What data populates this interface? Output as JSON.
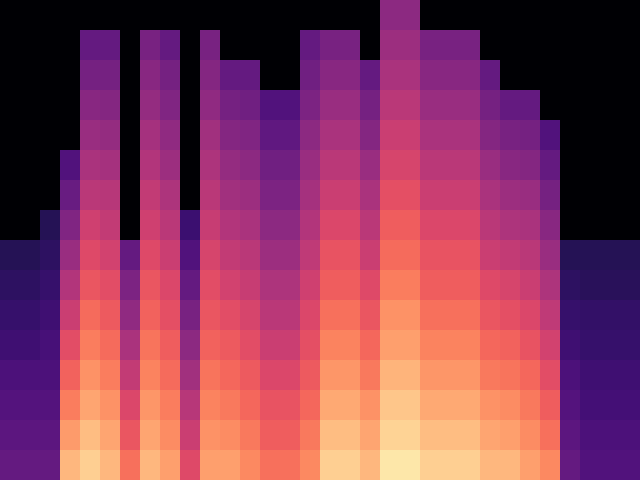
{
  "chart_data": {
    "type": "heatmap",
    "color": "magma",
    "tick_labels": false,
    "values": [
      [
        0,
        0,
        0,
        0,
        0,
        0,
        0,
        0,
        0,
        0,
        0,
        0,
        0,
        0,
        0,
        0,
        0,
        0,
        0,
        0.4,
        0.4,
        0,
        0,
        0,
        0,
        0,
        0,
        0,
        0,
        0,
        0,
        0
      ],
      [
        0,
        0,
        0,
        0,
        0.3,
        0.3,
        0,
        0.35,
        0.3,
        0,
        0.35,
        0,
        0,
        0,
        0,
        0.3,
        0.35,
        0.35,
        0,
        0.44,
        0.44,
        0.35,
        0.35,
        0.35,
        0,
        0,
        0,
        0,
        0,
        0,
        0,
        0
      ],
      [
        0,
        0,
        0,
        0,
        0.34,
        0.34,
        0,
        0.39,
        0.34,
        0,
        0.38,
        0.3,
        0.3,
        0,
        0,
        0.33,
        0.39,
        0.39,
        0.3,
        0.47,
        0.47,
        0.39,
        0.39,
        0.39,
        0.3,
        0,
        0,
        0,
        0,
        0,
        0,
        0
      ],
      [
        0,
        0,
        0,
        0,
        0.39,
        0.38,
        0,
        0.42,
        0.37,
        0,
        0.41,
        0.34,
        0.33,
        0.25,
        0.25,
        0.36,
        0.43,
        0.43,
        0.34,
        0.51,
        0.51,
        0.43,
        0.43,
        0.43,
        0.34,
        0.3,
        0.3,
        0,
        0,
        0,
        0,
        0
      ],
      [
        0,
        0,
        0,
        0,
        0.43,
        0.42,
        0,
        0.46,
        0.41,
        0,
        0.45,
        0.38,
        0.37,
        0.29,
        0.29,
        0.4,
        0.47,
        0.47,
        0.38,
        0.55,
        0.55,
        0.47,
        0.47,
        0.47,
        0.38,
        0.35,
        0.34,
        0.25,
        0,
        0,
        0,
        0
      ],
      [
        0,
        0,
        0,
        0.25,
        0.47,
        0.46,
        0,
        0.49,
        0.44,
        0,
        0.48,
        0.42,
        0.4,
        0.33,
        0.33,
        0.43,
        0.51,
        0.51,
        0.43,
        0.58,
        0.58,
        0.51,
        0.51,
        0.51,
        0.43,
        0.39,
        0.38,
        0.3,
        0,
        0,
        0,
        0
      ],
      [
        0,
        0,
        0,
        0.31,
        0.51,
        0.5,
        0,
        0.53,
        0.48,
        0,
        0.51,
        0.45,
        0.44,
        0.36,
        0.36,
        0.46,
        0.55,
        0.55,
        0.47,
        0.62,
        0.62,
        0.55,
        0.55,
        0.55,
        0.47,
        0.44,
        0.43,
        0.34,
        0,
        0,
        0,
        0
      ],
      [
        0,
        0,
        0.15,
        0.37,
        0.56,
        0.53,
        0,
        0.56,
        0.51,
        0.2,
        0.54,
        0.49,
        0.47,
        0.4,
        0.4,
        0.49,
        0.59,
        0.59,
        0.51,
        0.66,
        0.66,
        0.59,
        0.59,
        0.59,
        0.51,
        0.48,
        0.47,
        0.39,
        0,
        0,
        0,
        0
      ],
      [
        0.15,
        0.15,
        0.17,
        0.43,
        0.6,
        0.57,
        0.3,
        0.6,
        0.55,
        0.25,
        0.58,
        0.53,
        0.51,
        0.44,
        0.44,
        0.52,
        0.63,
        0.63,
        0.55,
        0.69,
        0.69,
        0.63,
        0.63,
        0.63,
        0.55,
        0.53,
        0.51,
        0.43,
        0.15,
        0.15,
        0.15,
        0.15
      ],
      [
        0.17,
        0.17,
        0.19,
        0.49,
        0.64,
        0.61,
        0.36,
        0.64,
        0.59,
        0.3,
        0.61,
        0.57,
        0.54,
        0.48,
        0.48,
        0.56,
        0.66,
        0.66,
        0.6,
        0.73,
        0.73,
        0.66,
        0.66,
        0.66,
        0.6,
        0.58,
        0.55,
        0.48,
        0.17,
        0.16,
        0.16,
        0.16
      ],
      [
        0.19,
        0.19,
        0.21,
        0.55,
        0.69,
        0.65,
        0.41,
        0.67,
        0.62,
        0.35,
        0.64,
        0.61,
        0.58,
        0.51,
        0.51,
        0.59,
        0.7,
        0.7,
        0.64,
        0.77,
        0.77,
        0.7,
        0.7,
        0.7,
        0.64,
        0.62,
        0.59,
        0.52,
        0.19,
        0.18,
        0.18,
        0.18
      ],
      [
        0.21,
        0.21,
        0.23,
        0.61,
        0.73,
        0.69,
        0.47,
        0.71,
        0.66,
        0.4,
        0.67,
        0.65,
        0.61,
        0.55,
        0.55,
        0.62,
        0.74,
        0.74,
        0.68,
        0.8,
        0.8,
        0.74,
        0.74,
        0.74,
        0.68,
        0.67,
        0.63,
        0.57,
        0.21,
        0.19,
        0.19,
        0.19
      ],
      [
        0.24,
        0.24,
        0.24,
        0.67,
        0.77,
        0.73,
        0.53,
        0.74,
        0.69,
        0.45,
        0.71,
        0.68,
        0.65,
        0.59,
        0.59,
        0.65,
        0.78,
        0.78,
        0.72,
        0.84,
        0.84,
        0.78,
        0.78,
        0.78,
        0.72,
        0.71,
        0.68,
        0.61,
        0.24,
        0.21,
        0.21,
        0.21
      ],
      [
        0.26,
        0.26,
        0.26,
        0.73,
        0.81,
        0.77,
        0.59,
        0.78,
        0.73,
        0.5,
        0.74,
        0.72,
        0.68,
        0.63,
        0.63,
        0.68,
        0.82,
        0.82,
        0.77,
        0.88,
        0.88,
        0.82,
        0.82,
        0.82,
        0.77,
        0.76,
        0.72,
        0.66,
        0.26,
        0.22,
        0.22,
        0.22
      ],
      [
        0.28,
        0.28,
        0.28,
        0.79,
        0.86,
        0.81,
        0.64,
        0.81,
        0.76,
        0.55,
        0.77,
        0.76,
        0.72,
        0.66,
        0.66,
        0.72,
        0.86,
        0.86,
        0.81,
        0.91,
        0.91,
        0.86,
        0.86,
        0.86,
        0.81,
        0.8,
        0.76,
        0.7,
        0.28,
        0.24,
        0.24,
        0.24
      ],
      [
        0.3,
        0.3,
        0.3,
        0.85,
        0.9,
        0.85,
        0.7,
        0.85,
        0.8,
        0.6,
        0.8,
        0.8,
        0.75,
        0.7,
        0.7,
        0.75,
        0.9,
        0.9,
        0.85,
        0.95,
        0.95,
        0.9,
        0.9,
        0.9,
        0.85,
        0.85,
        0.8,
        0.75,
        0.3,
        0.25,
        0.25,
        0.25
      ]
    ]
  }
}
